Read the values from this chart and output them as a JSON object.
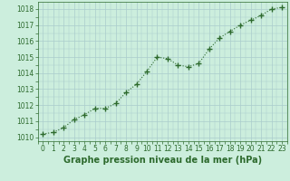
{
  "x": [
    0,
    1,
    2,
    3,
    4,
    5,
    6,
    7,
    8,
    9,
    10,
    11,
    12,
    13,
    14,
    15,
    16,
    17,
    18,
    19,
    20,
    21,
    22,
    23
  ],
  "y": [
    1010.2,
    1010.3,
    1010.6,
    1011.1,
    1011.4,
    1011.8,
    1011.8,
    1012.1,
    1012.8,
    1013.3,
    1014.1,
    1015.0,
    1014.9,
    1014.5,
    1014.4,
    1014.6,
    1015.5,
    1016.2,
    1016.6,
    1017.0,
    1017.3,
    1017.6,
    1018.0,
    1018.1
  ],
  "line_color": "#2d6a2d",
  "marker": "+",
  "marker_size": 4,
  "bg_color": "#cceedd",
  "grid_color": "#aacccc",
  "xlabel": "Graphe pression niveau de la mer (hPa)",
  "xlabel_fontsize": 7,
  "ylim": [
    1009.75,
    1018.45
  ],
  "xlim": [
    -0.5,
    23.5
  ],
  "yticks": [
    1010,
    1011,
    1012,
    1013,
    1014,
    1015,
    1016,
    1017,
    1018
  ],
  "xticks": [
    0,
    1,
    2,
    3,
    4,
    5,
    6,
    7,
    8,
    9,
    10,
    11,
    12,
    13,
    14,
    15,
    16,
    17,
    18,
    19,
    20,
    21,
    22,
    23
  ],
  "tick_fontsize": 5.5
}
